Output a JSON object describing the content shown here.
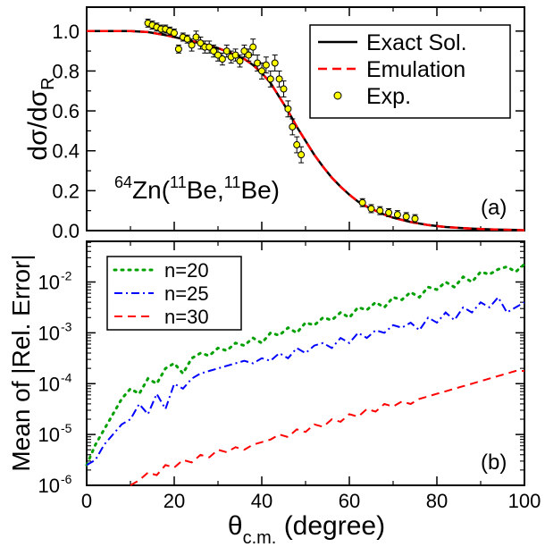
{
  "chart_data": [
    {
      "panel": "(a)",
      "type": "line",
      "annotation": "64Zn(11Be,11Be)",
      "annotation_parts": {
        "iso1": "64",
        "el1": "Zn(",
        "iso2": "11",
        "el2": "Be,",
        "iso3": "11",
        "el3": "Be)"
      },
      "ylabel": "dσ/dσR",
      "ylabel_parts": {
        "main": "dσ/dσ",
        "sub": "R"
      },
      "xlim": [
        0,
        100
      ],
      "ylim": [
        0.0,
        1.12
      ],
      "yticks": [
        "0.0",
        "0.2",
        "0.4",
        "0.6",
        "0.8",
        "1.0"
      ],
      "legend": {
        "placement": "top-right",
        "entries": [
          "Exact Sol.",
          "Emulation",
          "Exp."
        ]
      },
      "series": [
        {
          "name": "Exact Sol.",
          "color": "#000000",
          "style": "solid",
          "x": [
            0,
            5,
            10,
            14,
            18,
            22,
            26,
            30,
            34,
            36,
            38,
            40,
            42,
            44,
            46,
            48,
            50,
            52,
            54,
            56,
            58,
            60,
            62,
            64,
            66,
            68,
            70,
            74,
            78,
            82,
            86,
            90,
            94,
            98,
            100
          ],
          "y": [
            1.0,
            1.0,
            1.0,
            0.995,
            0.98,
            0.96,
            0.94,
            0.915,
            0.88,
            0.86,
            0.83,
            0.79,
            0.74,
            0.67,
            0.6,
            0.52,
            0.45,
            0.38,
            0.32,
            0.265,
            0.22,
            0.18,
            0.145,
            0.12,
            0.1,
            0.08,
            0.065,
            0.043,
            0.028,
            0.018,
            0.012,
            0.008,
            0.005,
            0.003,
            0.002
          ]
        },
        {
          "name": "Emulation",
          "color": "#ff0000",
          "style": "dashed",
          "x": [
            0,
            5,
            10,
            14,
            18,
            22,
            26,
            30,
            34,
            36,
            38,
            40,
            42,
            44,
            46,
            48,
            50,
            52,
            54,
            56,
            58,
            60,
            62,
            64,
            66,
            68,
            70,
            74,
            78,
            82,
            86,
            90,
            94,
            98,
            100
          ],
          "y": [
            1.0,
            1.0,
            1.0,
            0.995,
            0.98,
            0.96,
            0.94,
            0.915,
            0.88,
            0.86,
            0.83,
            0.79,
            0.74,
            0.67,
            0.6,
            0.52,
            0.45,
            0.38,
            0.32,
            0.265,
            0.22,
            0.18,
            0.145,
            0.12,
            0.1,
            0.08,
            0.065,
            0.043,
            0.028,
            0.018,
            0.012,
            0.008,
            0.005,
            0.003,
            0.002
          ]
        },
        {
          "name": "Exp.",
          "type": "scatter",
          "color": "#ffff00",
          "x": [
            14,
            15,
            16,
            17,
            18,
            19,
            20,
            21,
            22,
            23,
            24,
            25,
            26,
            27,
            28,
            29,
            30,
            31,
            32,
            33,
            34,
            35,
            36,
            37,
            38,
            39,
            40,
            41,
            42,
            43,
            44,
            45,
            46,
            47,
            48,
            49,
            63,
            65,
            67,
            69,
            71,
            73,
            75
          ],
          "y": [
            1.04,
            1.03,
            1.02,
            1.01,
            1.01,
            1.0,
            0.99,
            0.91,
            0.97,
            0.96,
            0.93,
            0.97,
            0.94,
            0.92,
            0.92,
            0.9,
            0.88,
            0.86,
            0.9,
            0.87,
            0.88,
            0.85,
            0.9,
            0.88,
            0.92,
            0.84,
            0.8,
            0.83,
            0.76,
            0.84,
            0.76,
            0.71,
            0.61,
            0.52,
            0.43,
            0.38,
            0.14,
            0.11,
            0.1,
            0.09,
            0.08,
            0.07,
            0.06
          ],
          "err": [
            0.02,
            0.02,
            0.02,
            0.02,
            0.02,
            0.02,
            0.02,
            0.02,
            0.02,
            0.02,
            0.03,
            0.03,
            0.03,
            0.03,
            0.03,
            0.03,
            0.03,
            0.03,
            0.03,
            0.03,
            0.03,
            0.03,
            0.03,
            0.03,
            0.04,
            0.04,
            0.04,
            0.04,
            0.04,
            0.04,
            0.04,
            0.04,
            0.04,
            0.04,
            0.04,
            0.04,
            0.02,
            0.02,
            0.02,
            0.02,
            0.02,
            0.02,
            0.02
          ]
        }
      ]
    },
    {
      "panel": "(b)",
      "type": "line",
      "ylabel": "Mean of |Rel. Error|",
      "xlabel": "θc.m. (degree)",
      "xlabel_parts": {
        "main": "θ",
        "sub": "c.m.",
        "rest": " (degree)"
      },
      "xlim": [
        0,
        100
      ],
      "xticks": [
        "0",
        "20",
        "40",
        "60",
        "80",
        "100"
      ],
      "ylim_log10": [
        -6,
        -1.2
      ],
      "yscale": "log",
      "yticks": [
        {
          "exp": -6,
          "base": "10",
          "pow": "-6"
        },
        {
          "exp": -5,
          "base": "10",
          "pow": "-5"
        },
        {
          "exp": -4,
          "base": "10",
          "pow": "-4"
        },
        {
          "exp": -3,
          "base": "10",
          "pow": "-3"
        },
        {
          "exp": -2,
          "base": "10",
          "pow": "-2"
        }
      ],
      "legend": {
        "placement": "top-left",
        "entries": [
          "n=20",
          "n=25",
          "n=30"
        ]
      },
      "series": [
        {
          "name": "n=20",
          "color": "#00a000",
          "style": "dotted",
          "x": [
            0,
            2,
            4,
            6,
            8,
            10,
            12,
            14,
            16,
            18,
            20,
            22,
            24,
            26,
            28,
            30,
            32,
            34,
            36,
            38,
            40,
            42,
            44,
            46,
            48,
            50,
            52,
            54,
            56,
            58,
            60,
            62,
            64,
            66,
            68,
            70,
            72,
            74,
            76,
            78,
            80,
            82,
            84,
            86,
            88,
            90,
            92,
            94,
            96,
            98,
            100
          ],
          "log10y": [
            -5.6,
            -5.2,
            -4.9,
            -4.6,
            -4.3,
            -4.1,
            -4.2,
            -3.9,
            -4.0,
            -3.7,
            -3.6,
            -3.8,
            -3.5,
            -3.4,
            -3.45,
            -3.3,
            -3.35,
            -3.2,
            -3.25,
            -3.1,
            -3.2,
            -3.0,
            -3.05,
            -2.9,
            -3.0,
            -2.8,
            -2.85,
            -2.7,
            -2.75,
            -2.6,
            -2.7,
            -2.5,
            -2.55,
            -2.4,
            -2.5,
            -2.3,
            -2.35,
            -2.2,
            -2.3,
            -2.1,
            -2.15,
            -2.0,
            -2.1,
            -1.9,
            -2.0,
            -1.8,
            -1.85,
            -1.75,
            -1.7,
            -1.8,
            -1.65
          ]
        },
        {
          "name": "n=25",
          "color": "#0000ff",
          "style": "dashdot",
          "x": [
            0,
            2,
            4,
            6,
            8,
            10,
            12,
            14,
            16,
            18,
            20,
            22,
            24,
            26,
            28,
            30,
            32,
            34,
            36,
            38,
            40,
            42,
            44,
            46,
            48,
            50,
            52,
            54,
            56,
            58,
            60,
            62,
            64,
            66,
            68,
            70,
            72,
            74,
            76,
            78,
            80,
            82,
            84,
            86,
            88,
            90,
            92,
            94,
            96,
            98,
            100
          ],
          "log10y": [
            -5.6,
            -5.5,
            -5.2,
            -5.0,
            -4.8,
            -4.7,
            -4.4,
            -4.6,
            -4.2,
            -4.5,
            -4.0,
            -4.1,
            -3.9,
            -3.8,
            -3.75,
            -3.7,
            -3.65,
            -3.6,
            -3.55,
            -3.6,
            -3.5,
            -3.55,
            -3.4,
            -3.5,
            -3.3,
            -3.4,
            -3.25,
            -3.2,
            -3.3,
            -3.1,
            -3.2,
            -3.0,
            -3.1,
            -2.95,
            -3.0,
            -2.85,
            -2.9,
            -2.8,
            -2.95,
            -2.7,
            -2.8,
            -2.6,
            -2.75,
            -2.5,
            -2.6,
            -2.4,
            -2.5,
            -2.3,
            -2.6,
            -2.5,
            -2.4
          ]
        },
        {
          "name": "n=30",
          "color": "#ff0000",
          "style": "dashed",
          "x": [
            10,
            12,
            14,
            16,
            18,
            20,
            22,
            24,
            26,
            28,
            30,
            32,
            34,
            36,
            38,
            40,
            42,
            44,
            46,
            48,
            50,
            52,
            54,
            56,
            58,
            60,
            62,
            64,
            66,
            68,
            70,
            72,
            74,
            76,
            78,
            80,
            82,
            84,
            86,
            88,
            90,
            92,
            94,
            96,
            98,
            100
          ],
          "log10y": [
            -6.0,
            -5.9,
            -5.75,
            -5.8,
            -5.6,
            -5.65,
            -5.5,
            -5.55,
            -5.4,
            -5.45,
            -5.3,
            -5.35,
            -5.25,
            -5.3,
            -5.2,
            -5.15,
            -5.1,
            -5.0,
            -5.05,
            -4.9,
            -4.95,
            -4.8,
            -4.85,
            -4.7,
            -4.75,
            -4.6,
            -4.65,
            -4.5,
            -4.55,
            -4.4,
            -4.45,
            -4.35,
            -4.4,
            -4.3,
            -4.25,
            -4.2,
            -4.15,
            -4.1,
            -4.05,
            -4.0,
            -3.95,
            -3.9,
            -3.85,
            -3.8,
            -3.75,
            -3.75
          ]
        }
      ]
    }
  ]
}
